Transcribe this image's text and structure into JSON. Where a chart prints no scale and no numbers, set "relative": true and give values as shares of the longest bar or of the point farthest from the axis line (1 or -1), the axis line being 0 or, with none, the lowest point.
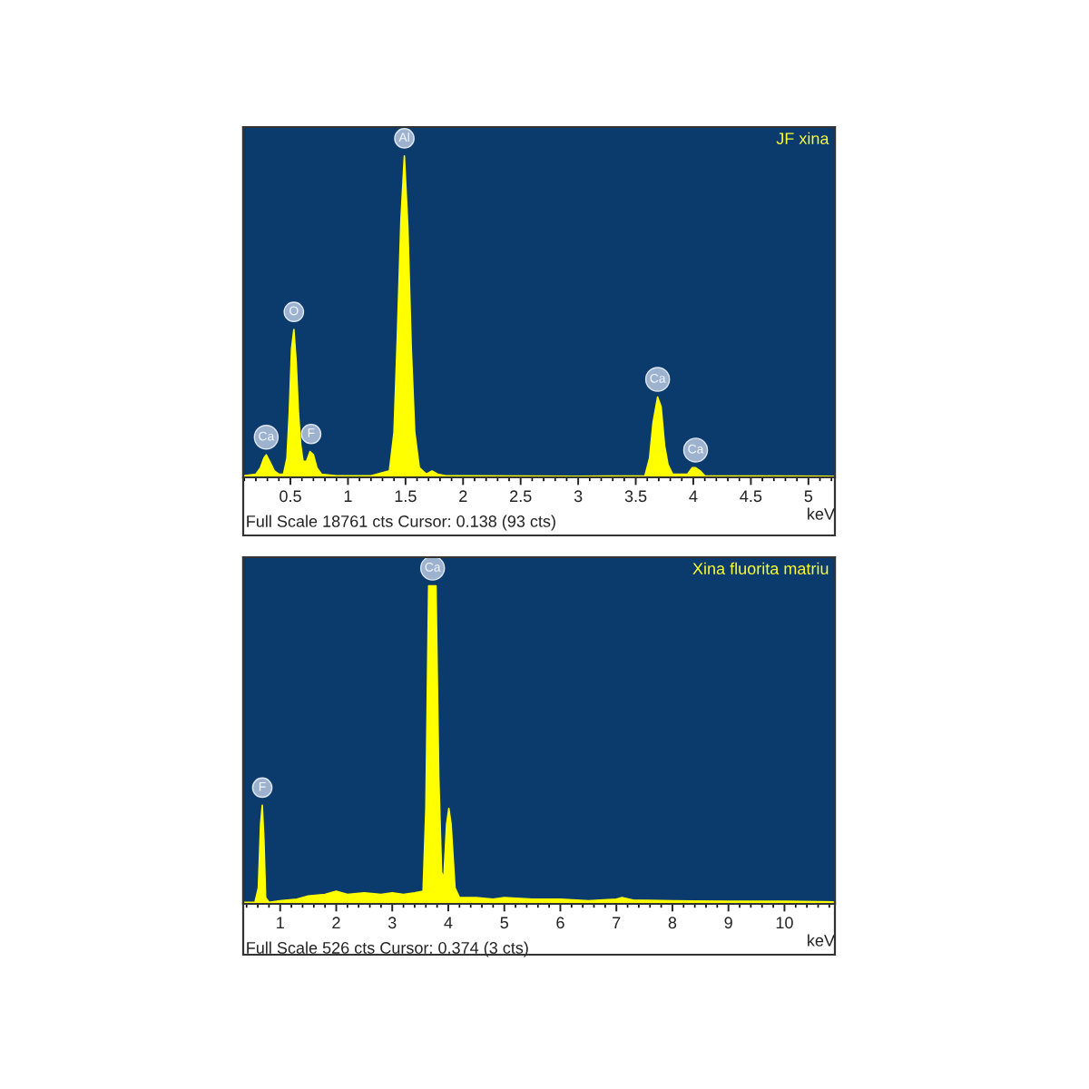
{
  "chart_data": [
    {
      "type": "area",
      "title": "JF xina",
      "xlabel": "keV",
      "relative": true,
      "color": "#ffff00",
      "xlim": [
        0.09,
        5.23
      ],
      "xticks": [
        0.5,
        1,
        1.5,
        2,
        2.5,
        3,
        3.5,
        4,
        4.5,
        5
      ],
      "x": [
        0.09,
        0.2,
        0.24,
        0.27,
        0.29,
        0.32,
        0.36,
        0.4,
        0.44,
        0.47,
        0.49,
        0.51,
        0.53,
        0.55,
        0.57,
        0.59,
        0.61,
        0.64,
        0.67,
        0.7,
        0.73,
        0.77,
        0.9,
        1.2,
        1.36,
        1.4,
        1.43,
        1.46,
        1.49,
        1.52,
        1.55,
        1.58,
        1.62,
        1.68,
        1.73,
        1.78,
        1.85,
        2.0,
        3.0,
        3.58,
        3.62,
        3.65,
        3.69,
        3.72,
        3.75,
        3.78,
        3.82,
        3.95,
        3.99,
        4.02,
        4.06,
        4.1,
        5.23
      ],
      "values": [
        0.005,
        0.01,
        0.03,
        0.06,
        0.07,
        0.05,
        0.02,
        0.01,
        0.01,
        0.06,
        0.2,
        0.4,
        0.46,
        0.36,
        0.2,
        0.1,
        0.05,
        0.05,
        0.08,
        0.07,
        0.03,
        0.01,
        0.005,
        0.005,
        0.02,
        0.14,
        0.45,
        0.8,
        1.0,
        0.78,
        0.4,
        0.14,
        0.03,
        0.01,
        0.02,
        0.01,
        0.005,
        0.005,
        0.003,
        0.005,
        0.06,
        0.17,
        0.25,
        0.22,
        0.1,
        0.04,
        0.01,
        0.01,
        0.03,
        0.03,
        0.02,
        0.005,
        0.003
      ],
      "annotations": [
        "Full Scale 18761 cts Cursor: 0.138 (93 cts)",
        {
          "text": "Ca",
          "x": 0.29,
          "y": 0.07
        },
        {
          "text": "O",
          "x": 0.53,
          "y": 0.46
        },
        {
          "text": "F",
          "x": 0.68,
          "y": 0.08
        },
        {
          "text": "Al",
          "x": 1.49,
          "y": 1.0
        },
        {
          "text": "Ca",
          "x": 3.69,
          "y": 0.25
        },
        {
          "text": "Ca",
          "x": 4.02,
          "y": 0.03
        }
      ]
    },
    {
      "type": "area",
      "title": "Xina fluorita matriu",
      "xlabel": "keV",
      "relative": true,
      "color": "#ffff00",
      "xlim": [
        0.34,
        10.9
      ],
      "xticks": [
        1,
        2,
        3,
        4,
        5,
        6,
        7,
        8,
        9,
        10
      ],
      "x": [
        0.34,
        0.55,
        0.61,
        0.65,
        0.68,
        0.71,
        0.74,
        0.8,
        1.0,
        1.3,
        1.5,
        1.8,
        2.0,
        2.2,
        2.5,
        2.8,
        3.0,
        3.2,
        3.4,
        3.55,
        3.6,
        3.65,
        3.78,
        3.83,
        3.88,
        3.92,
        3.97,
        4.01,
        4.05,
        4.12,
        4.2,
        4.5,
        4.8,
        5.0,
        5.5,
        6.0,
        6.5,
        7.0,
        7.1,
        7.3,
        8.0,
        9.0,
        10.0,
        10.9
      ],
      "values": [
        0.005,
        0.005,
        0.05,
        0.25,
        0.31,
        0.2,
        0.02,
        0.005,
        0.01,
        0.015,
        0.025,
        0.03,
        0.04,
        0.03,
        0.035,
        0.03,
        0.035,
        0.03,
        0.035,
        0.04,
        0.3,
        1.0,
        1.0,
        0.4,
        0.1,
        0.08,
        0.25,
        0.3,
        0.25,
        0.05,
        0.02,
        0.02,
        0.015,
        0.02,
        0.015,
        0.015,
        0.01,
        0.015,
        0.02,
        0.012,
        0.01,
        0.008,
        0.008,
        0.006
      ],
      "annotations": [
        "Full Scale 526 cts Cursor: 0.374 (3 cts)",
        {
          "text": "F",
          "x": 0.68,
          "y": 0.31
        },
        {
          "text": "Ca",
          "x": 3.72,
          "y": 1.0
        }
      ]
    }
  ]
}
